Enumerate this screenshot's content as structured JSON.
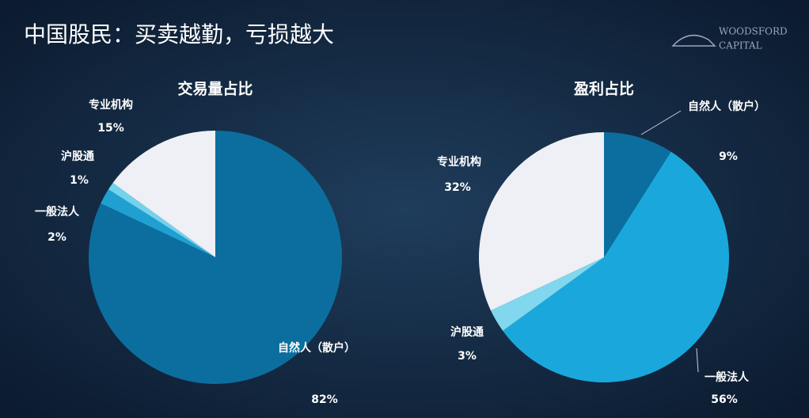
{
  "title": "中国股民：买卖越勤，亏损越大",
  "logo": {
    "line1": "WOODSFORD",
    "line2": "CAPITAL"
  },
  "chart_data": [
    {
      "type": "pie",
      "title": "交易量占比",
      "categories": [
        "自然人（散户）",
        "一般法人",
        "沪股通",
        "专业机构"
      ],
      "values": [
        82,
        2,
        1,
        15
      ],
      "value_labels": [
        "82%",
        "2%",
        "1%",
        "15%"
      ],
      "colors": [
        "#0b6e9e",
        "#1fa0d0",
        "#74d2ec",
        "#eef0f5"
      ]
    },
    {
      "type": "pie",
      "title": "盈利占比",
      "categories": [
        "自然人（散户）",
        "一般法人",
        "沪股通",
        "专业机构"
      ],
      "values": [
        9,
        56,
        3,
        32
      ],
      "value_labels": [
        "9%",
        "56%",
        "3%",
        "32%"
      ],
      "colors": [
        "#0b6e9e",
        "#1aa8dc",
        "#80d7ee",
        "#eef0f5"
      ]
    }
  ]
}
